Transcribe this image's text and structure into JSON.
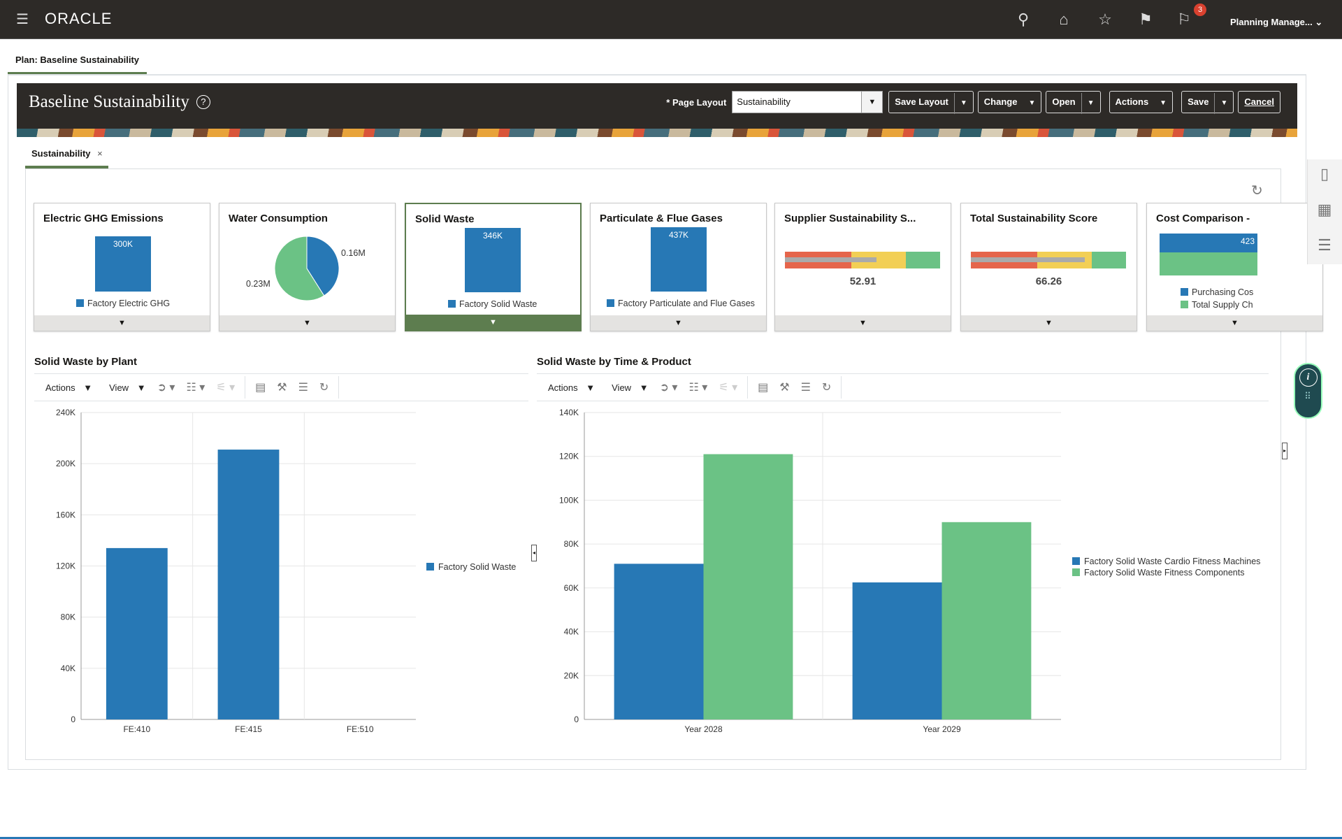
{
  "topbar": {
    "brand": "ORACLE",
    "user": "Planning Manage...",
    "notification_count": "3",
    "icons": [
      "menu-icon",
      "search-icon",
      "home-icon",
      "star-icon",
      "flag-icon",
      "notifications-icon"
    ]
  },
  "plan_tab": "Plan: Baseline Sustainability",
  "header": {
    "title": "Baseline Sustainability",
    "page_layout_label": "Page Layout",
    "required_mark": "*",
    "page_layout_value": "Sustainability",
    "buttons": {
      "save_layout": "Save Layout",
      "change": "Change",
      "open": "Open",
      "actions": "Actions",
      "save": "Save",
      "cancel": "Cancel"
    }
  },
  "content_tab": {
    "label": "Sustainability",
    "close": "×"
  },
  "tiles": [
    {
      "title": "Electric GHG Emissions",
      "value_label": "300K",
      "legend": "Factory Electric GHG"
    },
    {
      "title": "Water Consumption",
      "slices": [
        {
          "label": "0.16M",
          "value": 0.16,
          "color": "#2778b5"
        },
        {
          "label": "0.23M",
          "value": 0.23,
          "color": "#6bc285"
        }
      ]
    },
    {
      "title": "Solid Waste",
      "value_label": "346K",
      "legend": "Factory Solid Waste",
      "selected": true
    },
    {
      "title": "Particulate & Flue Gases",
      "value_label": "437K",
      "legend": "Factory Particulate and Flue Gases"
    },
    {
      "title": "Supplier Sustainability S...",
      "score": "52.91"
    },
    {
      "title": "Total Sustainability Score",
      "score": "66.26"
    },
    {
      "title": "Cost Comparison - ",
      "value_label": "423",
      "legend": [
        "Purchasing Cos",
        "Total Supply Ch"
      ]
    }
  ],
  "toolbar": {
    "actions": "Actions",
    "view": "View"
  },
  "colors": {
    "blue": "#2778b5",
    "green": "#6bc285",
    "accent": "#5d7d4f",
    "red": "#e5654b",
    "yellow": "#f2cf55"
  },
  "chart_data": [
    {
      "type": "bar",
      "title": "Solid Waste by Plant",
      "categories": [
        "FE:410",
        "FE:415",
        "FE:510"
      ],
      "series": [
        {
          "name": "Factory Solid Waste",
          "values": [
            134000,
            211000,
            0
          ],
          "color": "#2778b5"
        }
      ],
      "ylim": [
        0,
        240000
      ],
      "yticks": [
        "0",
        "40K",
        "80K",
        "120K",
        "160K",
        "200K",
        "240K"
      ],
      "grid": true,
      "legend": "right"
    },
    {
      "type": "bar",
      "title": "Solid Waste by Time & Product",
      "categories": [
        "Year 2028",
        "Year 2029"
      ],
      "series": [
        {
          "name": "Factory Solid Waste Cardio Fitness Machines",
          "values": [
            71000,
            62500
          ],
          "color": "#2778b5"
        },
        {
          "name": "Factory Solid Waste Fitness Components",
          "values": [
            121000,
            90000
          ],
          "color": "#6bc285"
        }
      ],
      "ylim": [
        0,
        140000
      ],
      "yticks": [
        "0",
        "20K",
        "40K",
        "60K",
        "80K",
        "100K",
        "120K",
        "140K"
      ],
      "grid": true,
      "legend": "right"
    }
  ]
}
